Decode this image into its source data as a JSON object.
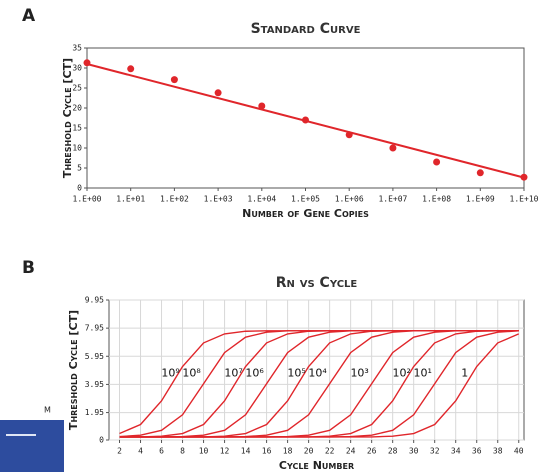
{
  "fragment_label": "M",
  "chart_data": [
    {
      "type": "scatter",
      "panel": "A",
      "title": "Standard Curve",
      "x_label": "Number of Gene Copies",
      "y_label": "Threshold Cycle [CT]",
      "xscale": "log",
      "xlim": [
        1,
        10000000000
      ],
      "ylim": [
        0,
        35
      ],
      "xticks": [
        {
          "value": 1,
          "label": "1.E+00"
        },
        {
          "value": 10,
          "label": "1.E+01"
        },
        {
          "value": 100,
          "label": "1.E+02"
        },
        {
          "value": 1000,
          "label": "1.E+03"
        },
        {
          "value": 10000,
          "label": "1.E+04"
        },
        {
          "value": 100000,
          "label": "1.E+05"
        },
        {
          "value": 1000000,
          "label": "1.E+06"
        },
        {
          "value": 10000000,
          "label": "1.E+07"
        },
        {
          "value": 100000000,
          "label": "1.E+08"
        },
        {
          "value": 1000000000,
          "label": "1.E+09"
        },
        {
          "value": 10000000000,
          "label": "1.E+10"
        }
      ],
      "yticks": [
        0,
        5,
        10,
        15,
        20,
        25,
        30,
        35
      ],
      "grid": false,
      "series": [
        {
          "mode": "markers",
          "color": "#e0262b",
          "x": [
            1,
            10,
            100,
            1000,
            10000,
            100000,
            1000000,
            10000000,
            100000000,
            1000000000,
            10000000000
          ],
          "values": [
            31.3,
            29.8,
            27.1,
            23.8,
            20.5,
            17.0,
            13.3,
            10.0,
            6.5,
            3.8,
            2.7
          ]
        },
        {
          "mode": "line",
          "color": "#e0262b",
          "x": [
            1,
            10000000000
          ],
          "values": [
            31.0,
            2.6
          ]
        }
      ]
    },
    {
      "type": "line",
      "panel": "B",
      "title": "Rn vs Cycle",
      "x_label": "Cycle Number",
      "y_label": "Threshold Cycle [CT]",
      "xlim": [
        1,
        40.5
      ],
      "ylim": [
        0,
        9.95
      ],
      "xticks": [
        2,
        4,
        6,
        8,
        10,
        12,
        14,
        16,
        18,
        20,
        22,
        24,
        26,
        28,
        30,
        32,
        34,
        36,
        38,
        40
      ],
      "yticks": [
        0,
        1.95,
        3.95,
        5.95,
        7.95,
        9.95
      ],
      "grid": true,
      "x": [
        2,
        4,
        6,
        8,
        10,
        12,
        14,
        16,
        18,
        20,
        22,
        24,
        26,
        28,
        30,
        32,
        34,
        36,
        38,
        40
      ],
      "series": [
        {
          "name": "10⁹",
          "color": "#e0262b",
          "values": [
            0.46,
            1.1,
            2.78,
            5.22,
            6.9,
            7.54,
            7.73,
            7.76,
            7.76,
            7.76,
            7.76,
            7.76,
            7.76,
            7.76,
            7.76,
            7.76,
            7.76,
            7.76,
            7.76,
            7.76
          ]
        },
        {
          "name": "10⁸",
          "color": "#e0262b",
          "values": [
            0.24,
            0.34,
            0.69,
            1.79,
            4.0,
            6.21,
            7.31,
            7.66,
            7.76,
            7.76,
            7.76,
            7.76,
            7.76,
            7.76,
            7.76,
            7.76,
            7.76,
            7.76,
            7.76,
            7.76
          ]
        },
        {
          "name": "10⁷",
          "color": "#e0262b",
          "values": [
            0.22,
            0.22,
            0.27,
            0.46,
            1.1,
            2.78,
            5.22,
            6.9,
            7.54,
            7.73,
            7.76,
            7.76,
            7.76,
            7.76,
            7.76,
            7.76,
            7.76,
            7.76,
            7.76,
            7.76
          ]
        },
        {
          "name": "10⁶",
          "color": "#e0262b",
          "values": [
            0.22,
            0.22,
            0.22,
            0.24,
            0.34,
            0.69,
            1.79,
            4.0,
            6.21,
            7.31,
            7.66,
            7.76,
            7.76,
            7.76,
            7.76,
            7.76,
            7.76,
            7.76,
            7.76,
            7.76
          ]
        },
        {
          "name": "10⁵",
          "color": "#e0262b",
          "values": [
            0.22,
            0.22,
            0.22,
            0.22,
            0.22,
            0.27,
            0.46,
            1.1,
            2.78,
            5.22,
            6.9,
            7.54,
            7.73,
            7.76,
            7.76,
            7.76,
            7.76,
            7.76,
            7.76,
            7.76
          ]
        },
        {
          "name": "10⁴",
          "color": "#e0262b",
          "values": [
            0.22,
            0.22,
            0.22,
            0.22,
            0.22,
            0.22,
            0.24,
            0.34,
            0.69,
            1.79,
            4.0,
            6.21,
            7.31,
            7.66,
            7.76,
            7.76,
            7.76,
            7.76,
            7.76,
            7.76
          ]
        },
        {
          "name": "10³",
          "color": "#e0262b",
          "values": [
            0.22,
            0.22,
            0.22,
            0.22,
            0.22,
            0.22,
            0.22,
            0.22,
            0.24,
            0.34,
            0.69,
            1.79,
            4.0,
            6.21,
            7.31,
            7.66,
            7.76,
            7.76,
            7.76,
            7.76
          ]
        },
        {
          "name": "10²",
          "color": "#e0262b",
          "values": [
            0.22,
            0.22,
            0.22,
            0.22,
            0.22,
            0.22,
            0.22,
            0.22,
            0.22,
            0.22,
            0.27,
            0.46,
            1.1,
            2.78,
            5.22,
            6.9,
            7.54,
            7.73,
            7.76,
            7.76
          ]
        },
        {
          "name": "10¹",
          "color": "#e0262b",
          "values": [
            0.22,
            0.22,
            0.22,
            0.22,
            0.22,
            0.22,
            0.22,
            0.22,
            0.22,
            0.22,
            0.22,
            0.24,
            0.34,
            0.69,
            1.79,
            4.0,
            6.21,
            7.31,
            7.66,
            7.76
          ]
        },
        {
          "name": "1",
          "color": "#e0262b",
          "values": [
            0.22,
            0.22,
            0.22,
            0.22,
            0.22,
            0.22,
            0.22,
            0.22,
            0.22,
            0.22,
            0.22,
            0.22,
            0.22,
            0.27,
            0.46,
            1.1,
            2.78,
            5.22,
            6.9,
            7.54
          ]
        }
      ]
    }
  ]
}
